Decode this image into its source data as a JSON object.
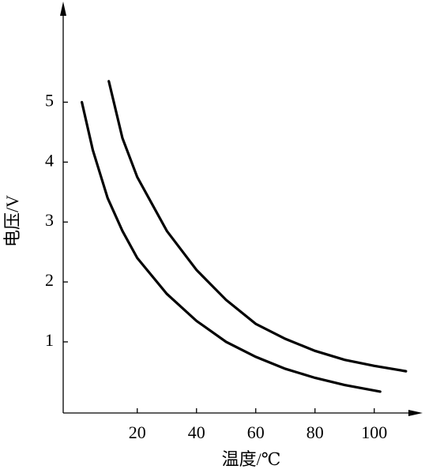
{
  "chart_data": {
    "type": "line",
    "x_label": "温度/℃",
    "y_label": "电压/V",
    "xlim": [
      -5,
      115
    ],
    "ylim": [
      -0.2,
      6.6
    ],
    "xticks": [
      20,
      40,
      60,
      80,
      100
    ],
    "yticks": [
      1,
      2,
      3,
      4,
      5
    ],
    "series": [
      {
        "color": "#000000",
        "x": [
          1.3,
          5,
          10,
          15,
          20,
          30,
          40,
          50,
          60,
          70,
          80,
          90,
          102
        ],
        "values": [
          5.0,
          4.2,
          3.4,
          2.85,
          2.4,
          1.8,
          1.35,
          1.0,
          0.75,
          0.55,
          0.4,
          0.28,
          0.17
        ]
      },
      {
        "color": "#000000",
        "x": [
          10.4,
          15,
          20,
          30,
          40,
          50,
          60,
          70,
          80,
          90,
          100,
          110.7
        ],
        "values": [
          5.35,
          4.4,
          3.75,
          2.85,
          2.2,
          1.7,
          1.3,
          1.05,
          0.85,
          0.7,
          0.6,
          0.51
        ]
      }
    ]
  }
}
